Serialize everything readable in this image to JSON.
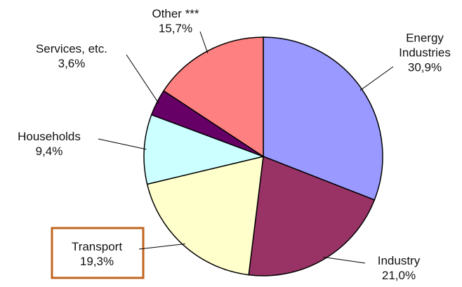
{
  "chart_data": {
    "type": "pie",
    "categories": [
      "Energy Industries",
      "Industry",
      "Transport",
      "Households",
      "Services, etc.",
      "Other ***"
    ],
    "values": [
      30.9,
      21.0,
      19.3,
      9.4,
      3.6,
      15.7
    ],
    "value_labels": [
      "30,9%",
      "21,0%",
      "19,3%",
      "9,4%",
      "3,6%",
      "15,7%"
    ],
    "colors": [
      "#9999ff",
      "#993366",
      "#ffffcc",
      "#ccffff",
      "#660066",
      "#ff8080"
    ]
  }
}
